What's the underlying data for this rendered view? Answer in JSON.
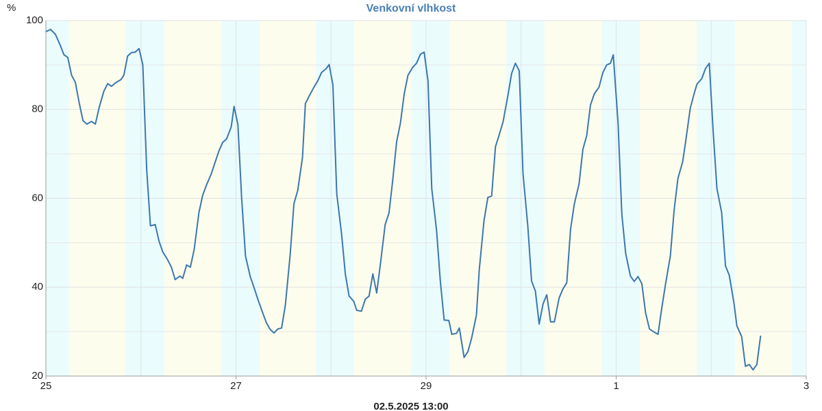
{
  "chart_data": {
    "type": "line",
    "title": "Venkovní vlhkost",
    "y_label": "%",
    "x_label": "02.5.2025 13:00",
    "xlim": [
      0,
      8
    ],
    "xticks": [
      {
        "value": 0,
        "label": "25"
      },
      {
        "value": 2,
        "label": "27"
      },
      {
        "value": 4,
        "label": "29"
      },
      {
        "value": 6,
        "label": "1"
      },
      {
        "value": 8,
        "label": "3"
      }
    ],
    "xminor": [
      1,
      3,
      5,
      7
    ],
    "ylim": [
      20,
      100
    ],
    "yticks": [
      20,
      40,
      60,
      80,
      100
    ],
    "yminor": [
      30,
      50,
      70,
      90
    ],
    "grid": true,
    "bands": [
      {
        "from": 0,
        "to": 0.245,
        "color": "#ebfcfd"
      },
      {
        "from": 0.245,
        "to": 0.836,
        "color": "#fdfdee"
      },
      {
        "from": 0.836,
        "to": 1.247,
        "color": "#ebfcfd"
      },
      {
        "from": 1.247,
        "to": 1.845,
        "color": "#fdfdee"
      },
      {
        "from": 1.845,
        "to": 2.249,
        "color": "#ebfcfd"
      },
      {
        "from": 2.249,
        "to": 2.84,
        "color": "#fdfdee"
      },
      {
        "from": 2.84,
        "to": 3.243,
        "color": "#ebfcfd"
      },
      {
        "from": 3.243,
        "to": 3.841,
        "color": "#fdfdee"
      },
      {
        "from": 3.841,
        "to": 4.245,
        "color": "#ebfcfd"
      },
      {
        "from": 4.245,
        "to": 4.843,
        "color": "#fdfdee"
      },
      {
        "from": 4.843,
        "to": 5.247,
        "color": "#ebfcfd"
      },
      {
        "from": 5.247,
        "to": 5.845,
        "color": "#fdfdee"
      },
      {
        "from": 5.845,
        "to": 6.249,
        "color": "#ebfcfd"
      },
      {
        "from": 6.249,
        "to": 6.847,
        "color": "#fdfdee"
      },
      {
        "from": 6.847,
        "to": 7.25,
        "color": "#ebfcfd"
      },
      {
        "from": 7.25,
        "to": 7.849,
        "color": "#fdfdee"
      },
      {
        "from": 7.849,
        "to": 8,
        "color": "#ebfcfd"
      }
    ],
    "color": "#3b76ae",
    "x": [
      0,
      0.05,
      0.1,
      0.15,
      0.19,
      0.23,
      0.27,
      0.31,
      0.35,
      0.39,
      0.43,
      0.48,
      0.52,
      0.56,
      0.61,
      0.65,
      0.69,
      0.74,
      0.79,
      0.82,
      0.86,
      0.9,
      0.94,
      0.98,
      1.02,
      1.06,
      1.1,
      1.15,
      1.19,
      1.23,
      1.28,
      1.32,
      1.36,
      1.41,
      1.44,
      1.48,
      1.52,
      1.56,
      1.61,
      1.65,
      1.69,
      1.74,
      1.78,
      1.82,
      1.86,
      1.9,
      1.95,
      1.98,
      2.02,
      2.06,
      2.1,
      2.15,
      2.19,
      2.23,
      2.28,
      2.32,
      2.36,
      2.4,
      2.44,
      2.48,
      2.52,
      2.57,
      2.61,
      2.65,
      2.7,
      2.73,
      2.77,
      2.82,
      2.86,
      2.9,
      2.95,
      2.98,
      3.02,
      3.06,
      3.11,
      3.15,
      3.19,
      3.24,
      3.27,
      3.32,
      3.36,
      3.4,
      3.44,
      3.48,
      3.52,
      3.57,
      3.61,
      3.65,
      3.69,
      3.73,
      3.77,
      3.81,
      3.86,
      3.9,
      3.94,
      3.98,
      4.02,
      4.06,
      4.11,
      4.15,
      4.19,
      4.24,
      4.27,
      4.32,
      4.35,
      4.4,
      4.44,
      4.48,
      4.53,
      4.56,
      4.61,
      4.65,
      4.69,
      4.73,
      4.77,
      4.81,
      4.86,
      4.9,
      4.94,
      4.98,
      5.02,
      5.07,
      5.11,
      5.15,
      5.19,
      5.23,
      5.27,
      5.31,
      5.35,
      5.4,
      5.44,
      5.48,
      5.52,
      5.56,
      5.61,
      5.65,
      5.69,
      5.73,
      5.77,
      5.82,
      5.86,
      5.9,
      5.94,
      5.97,
      6.02,
      6.06,
      6.1,
      6.15,
      6.19,
      6.23,
      6.27,
      6.31,
      6.35,
      6.4,
      6.44,
      6.48,
      6.52,
      6.57,
      6.61,
      6.65,
      6.7,
      6.73,
      6.78,
      6.82,
      6.85,
      6.9,
      6.94,
      6.98,
      7.02,
      7.06,
      7.11,
      7.15,
      7.19,
      7.24,
      7.27,
      7.32,
      7.36,
      7.4,
      7.44,
      7.48,
      7.52
    ],
    "values": [
      97.5,
      98,
      96.9,
      94.5,
      92.3,
      91.7,
      87.7,
      86.1,
      81.5,
      77.5,
      76.7,
      77.3,
      76.7,
      80.4,
      84.1,
      85.8,
      85.2,
      86.1,
      86.7,
      87.7,
      92,
      92.8,
      92.9,
      93.7,
      90,
      66.6,
      53.8,
      54.1,
      50.4,
      47.9,
      46.2,
      44.5,
      41.7,
      42.5,
      42,
      45,
      44.5,
      48.5,
      56.8,
      60.7,
      63,
      65.5,
      68.1,
      70.6,
      72.6,
      73.3,
      76.1,
      80.7,
      76.6,
      59.9,
      47,
      42.4,
      39.9,
      37.3,
      34.3,
      32,
      30.5,
      29.7,
      30.6,
      30.8,
      36,
      47.3,
      58.8,
      61.8,
      69.2,
      81.3,
      83,
      85,
      86.4,
      88.3,
      89.2,
      90.1,
      85.5,
      61,
      52.2,
      43,
      38,
      36.8,
      34.8,
      34.6,
      37.3,
      38,
      43,
      38.7,
      45.3,
      54.1,
      56.7,
      64.2,
      72.7,
      76.9,
      83.5,
      87.7,
      89.5,
      90.4,
      92.4,
      92.9,
      86.4,
      62.2,
      52.8,
      41.4,
      32.6,
      32.5,
      29.4,
      29.6,
      30.8,
      24.2,
      25.5,
      28.6,
      33.7,
      44,
      55,
      60.2,
      60.5,
      71.6,
      74.3,
      77.2,
      83,
      88.1,
      90.4,
      88.7,
      65.6,
      53.8,
      41.4,
      39.1,
      31.7,
      36.2,
      38.3,
      32.2,
      32.2,
      37.6,
      39.6,
      41,
      53,
      58.7,
      63.3,
      71,
      74.1,
      81,
      83.5,
      85,
      88.3,
      90,
      90.4,
      92.3,
      76.9,
      56.4,
      47.6,
      42.5,
      41.3,
      42.4,
      40.8,
      34.2,
      30.6,
      29.9,
      29.4,
      35.3,
      40.7,
      47,
      57.3,
      64.5,
      68.2,
      72.6,
      80.3,
      83.5,
      85.7,
      86.9,
      89.2,
      90.4,
      75.3,
      62.2,
      56.8,
      44.8,
      42.7,
      36.3,
      31.3,
      28.9,
      22.2,
      22.6,
      21.4,
      22.6,
      29.1
    ]
  }
}
